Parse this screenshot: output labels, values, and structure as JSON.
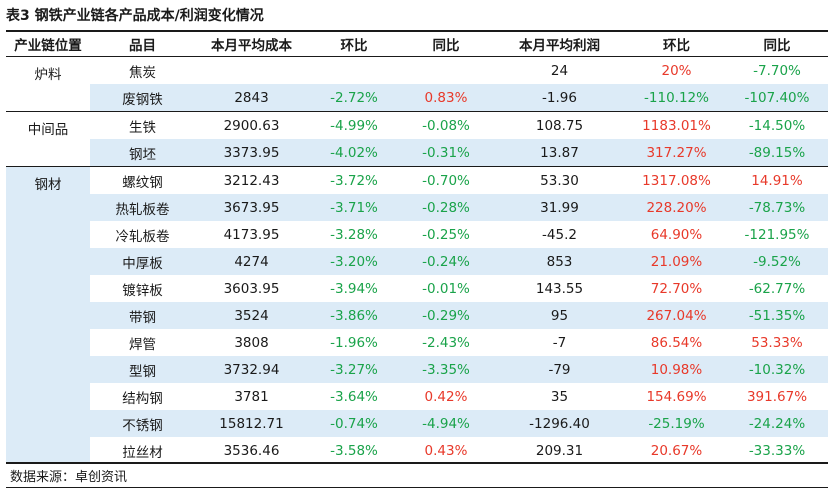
{
  "caption": "表3 钢铁产业链各产品成本/利润变化情况",
  "headers": [
    "产业链位置",
    "品目",
    "本月平均成本",
    "环比",
    "同比",
    "本月平均利润",
    "环比",
    "同比"
  ],
  "groups": [
    {
      "label": "炉料",
      "rows": [
        [
          "焦炭",
          "",
          "",
          "",
          "24",
          "20%",
          "-7.70%"
        ],
        [
          "废钢铁",
          "2843",
          "-2.72%",
          "0.83%",
          "-1.96",
          "-110.12%",
          "-107.40%"
        ]
      ]
    },
    {
      "label": "中间品",
      "rows": [
        [
          "生铁",
          "2900.63",
          "-4.99%",
          "-0.08%",
          "108.75",
          "1183.01%",
          "-14.50%"
        ],
        [
          "钢坯",
          "3373.95",
          "-4.02%",
          "-0.31%",
          "13.87",
          "317.27%",
          "-89.15%"
        ]
      ]
    },
    {
      "label": "钢材",
      "rows": [
        [
          "螺纹钢",
          "3212.43",
          "-3.72%",
          "-0.70%",
          "53.30",
          "1317.08%",
          "14.91%"
        ],
        [
          "热轧板卷",
          "3673.95",
          "-3.71%",
          "-0.28%",
          "31.99",
          "228.20%",
          "-78.73%"
        ],
        [
          "冷轧板卷",
          "4173.95",
          "-3.28%",
          "-0.25%",
          "-45.2",
          "64.90%",
          "-121.95%"
        ],
        [
          "中厚板",
          "4274",
          "-3.20%",
          "-0.24%",
          "853",
          "21.09%",
          "-9.52%"
        ],
        [
          "镀锌板",
          "3603.95",
          "-3.94%",
          "-0.01%",
          "143.55",
          "72.70%",
          "-62.77%"
        ],
        [
          "带钢",
          "3524",
          "-3.86%",
          "-0.29%",
          "95",
          "267.04%",
          "-51.35%"
        ],
        [
          "焊管",
          "3808",
          "-1.96%",
          "-2.43%",
          "-7",
          "86.54%",
          "53.33%"
        ],
        [
          "型钢",
          "3732.94",
          "-3.27%",
          "-3.35%",
          "-79",
          "10.98%",
          "-10.32%"
        ],
        [
          "结构钢",
          "3781",
          "-3.64%",
          "0.42%",
          "35",
          "154.69%",
          "391.67%"
        ],
        [
          "不锈钢",
          "15812.71",
          "-0.74%",
          "-4.94%",
          "-1296.40",
          "-25.19%",
          "-24.24%"
        ],
        [
          "拉丝材",
          "3536.46",
          "-3.58%",
          "0.43%",
          "209.31",
          "20.67%",
          "-33.33%"
        ]
      ]
    }
  ],
  "source": "数据来源：卓创资讯",
  "colors": {
    "increase": "#e8392a",
    "decrease": "#1aa34a",
    "highlight_bg": "#dcebf7"
  }
}
